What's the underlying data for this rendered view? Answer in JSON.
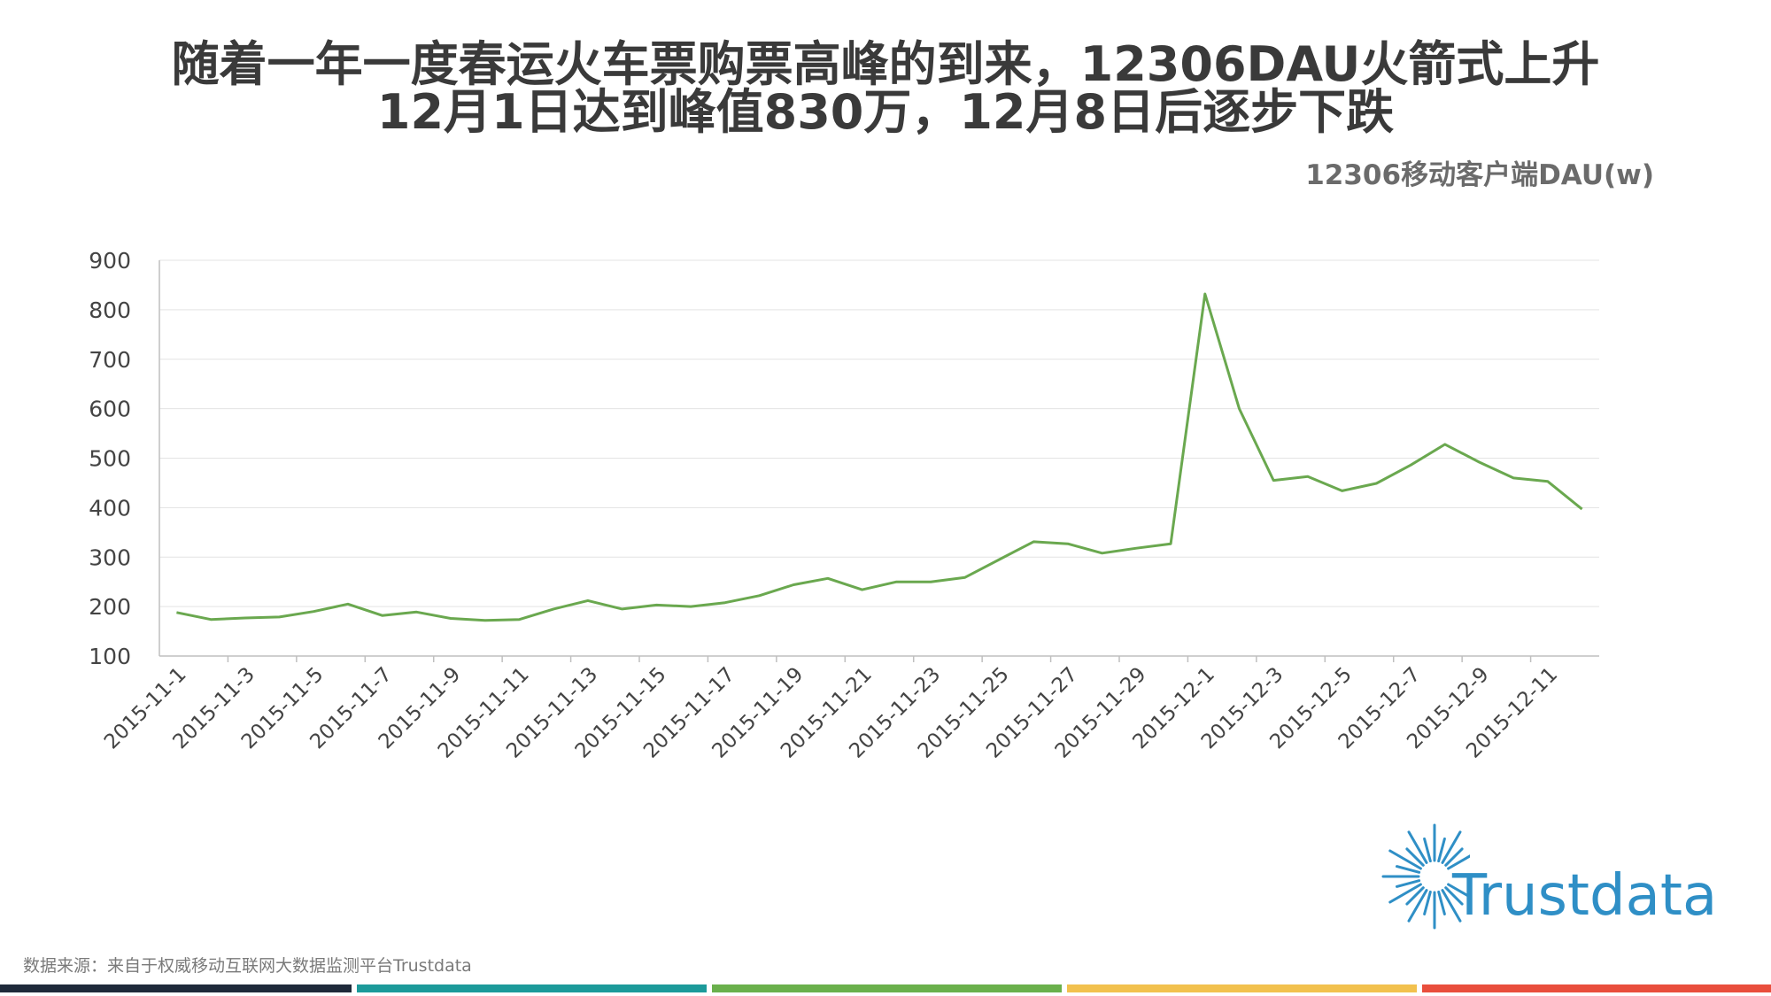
{
  "title_line1": "随着一年一度春运火车票购票高峰的到来，12306DAU火箭式上升",
  "title_line2": "12月1日达到峰值830万，12月8日后逐步下跌",
  "source": "数据来源：来自于权威移动互联网大数据监测平台Trustdata",
  "logo": "Trustdata",
  "colors": {
    "line": "#6aa84f",
    "bars": [
      "#1f2a3a",
      "#1c9a9a",
      "#6ab04c",
      "#f2c14e",
      "#e94e3c"
    ]
  },
  "chart_data": {
    "type": "line",
    "title": "12306移动客户端DAU(w)",
    "xlabel": "",
    "ylabel": "",
    "ylim": [
      100,
      900
    ],
    "yticks": [
      100,
      200,
      300,
      400,
      500,
      600,
      700,
      800,
      900
    ],
    "grid": true,
    "x": [
      "2015-11-1",
      "2015-11-2",
      "2015-11-3",
      "2015-11-4",
      "2015-11-5",
      "2015-11-6",
      "2015-11-7",
      "2015-11-8",
      "2015-11-9",
      "2015-11-10",
      "2015-11-11",
      "2015-11-12",
      "2015-11-13",
      "2015-11-14",
      "2015-11-15",
      "2015-11-16",
      "2015-11-17",
      "2015-11-18",
      "2015-11-19",
      "2015-11-20",
      "2015-11-21",
      "2015-11-22",
      "2015-11-23",
      "2015-11-24",
      "2015-11-25",
      "2015-11-26",
      "2015-11-27",
      "2015-11-28",
      "2015-11-29",
      "2015-11-30",
      "2015-12-1",
      "2015-12-2",
      "2015-12-3",
      "2015-12-4",
      "2015-12-5",
      "2015-12-6",
      "2015-12-7",
      "2015-12-8",
      "2015-12-9",
      "2015-12-10",
      "2015-12-11",
      "2015-12-12"
    ],
    "xtick_labels": [
      "2015-11-1",
      "2015-11-3",
      "2015-11-5",
      "2015-11-7",
      "2015-11-9",
      "2015-11-11",
      "2015-11-13",
      "2015-11-15",
      "2015-11-17",
      "2015-11-19",
      "2015-11-21",
      "2015-11-23",
      "2015-11-25",
      "2015-11-27",
      "2015-11-29",
      "2015-12-1",
      "2015-12-3",
      "2015-12-5",
      "2015-12-7",
      "2015-12-9",
      "2015-12-11"
    ],
    "series": [
      {
        "values": [
          188,
          174,
          177,
          179,
          190,
          205,
          182,
          189,
          176,
          172,
          174,
          195,
          212,
          195,
          203,
          200,
          208,
          222,
          244,
          257,
          234,
          250,
          250,
          259,
          295,
          331,
          327,
          308,
          318,
          327,
          832,
          600,
          455,
          463,
          434,
          449,
          486,
          528,
          492,
          460,
          453,
          397
        ]
      }
    ]
  }
}
